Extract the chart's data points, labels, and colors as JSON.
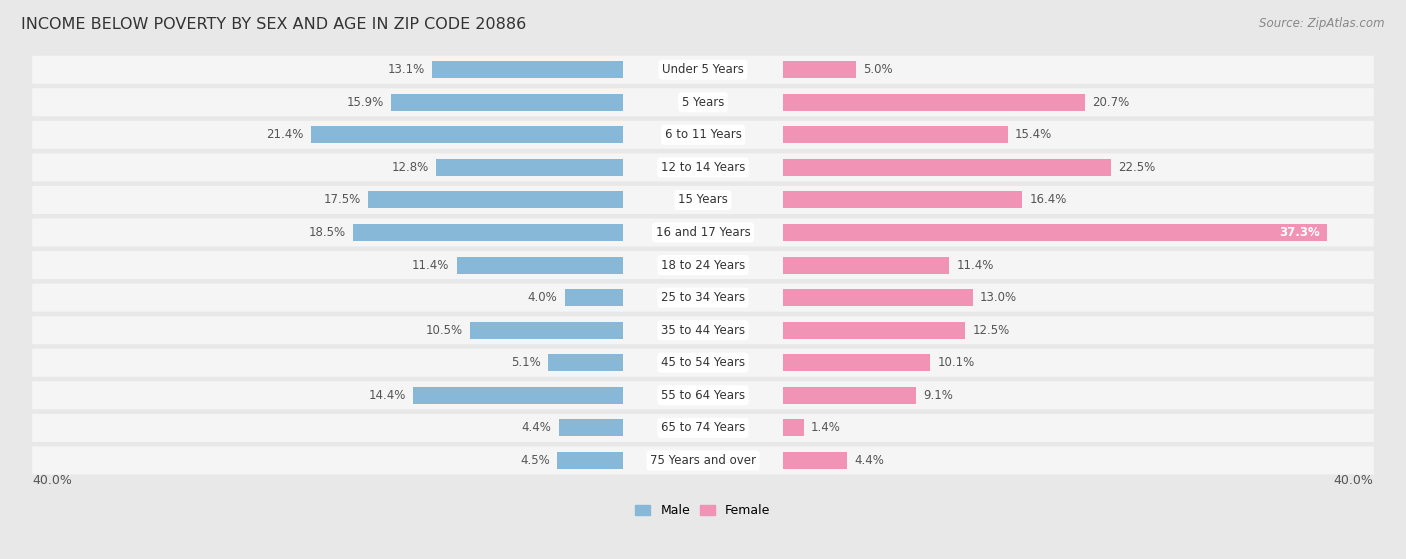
{
  "title": "INCOME BELOW POVERTY BY SEX AND AGE IN ZIP CODE 20886",
  "source": "Source: ZipAtlas.com",
  "categories": [
    "Under 5 Years",
    "5 Years",
    "6 to 11 Years",
    "12 to 14 Years",
    "15 Years",
    "16 and 17 Years",
    "18 to 24 Years",
    "25 to 34 Years",
    "35 to 44 Years",
    "45 to 54 Years",
    "55 to 64 Years",
    "65 to 74 Years",
    "75 Years and over"
  ],
  "male": [
    13.1,
    15.9,
    21.4,
    12.8,
    17.5,
    18.5,
    11.4,
    4.0,
    10.5,
    5.1,
    14.4,
    4.4,
    4.5
  ],
  "female": [
    5.0,
    20.7,
    15.4,
    22.5,
    16.4,
    37.3,
    11.4,
    13.0,
    12.5,
    10.1,
    9.1,
    1.4,
    4.4
  ],
  "male_color": "#88b8d8",
  "female_color": "#f093b4",
  "male_label": "Male",
  "female_label": "Female",
  "axis_limit": 40.0,
  "background_color": "#e8e8e8",
  "bar_background": "#f5f5f5",
  "title_fontsize": 11.5,
  "source_fontsize": 8.5,
  "label_fontsize": 8.5,
  "category_fontsize": 8.5
}
